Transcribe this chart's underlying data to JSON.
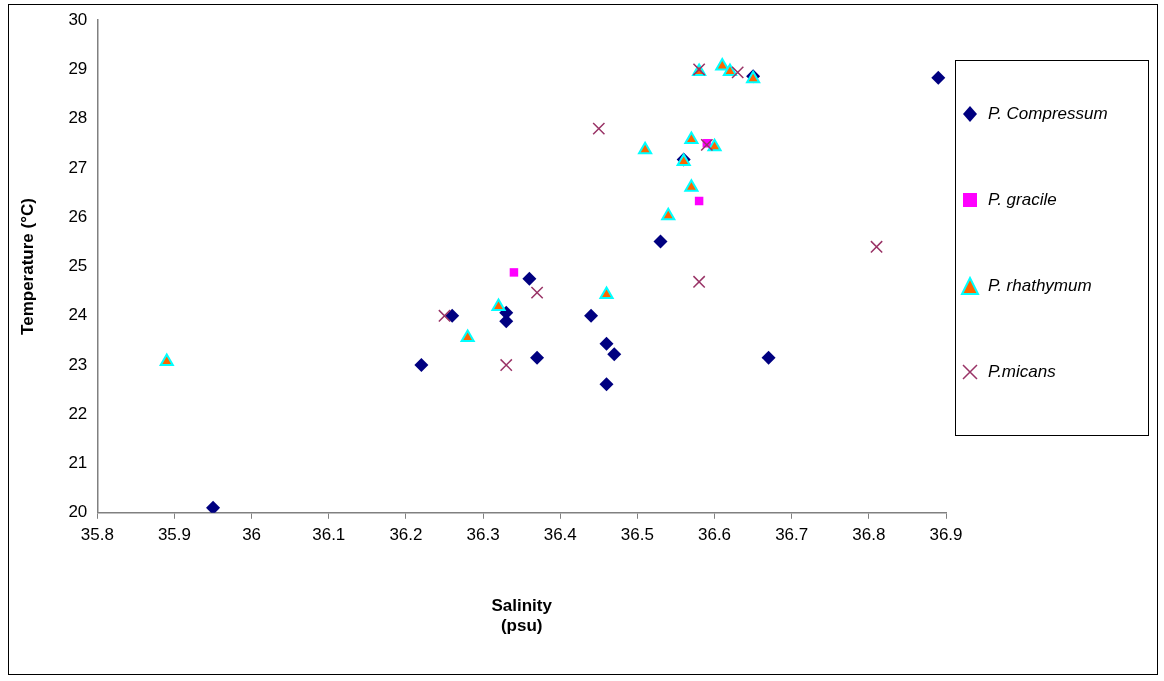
{
  "chart_data": {
    "type": "scatter",
    "xlabel": "Salinity (psu)",
    "ylabel": "Temperature (°C)",
    "xlim": [
      35.8,
      36.9
    ],
    "xticks": [
      35.8,
      35.9,
      36,
      36.1,
      36.2,
      36.3,
      36.4,
      36.5,
      36.6,
      36.7,
      36.8,
      36.9
    ],
    "ylim": [
      20,
      30
    ],
    "yticks": [
      20,
      21,
      22,
      23,
      24,
      25,
      26,
      27,
      28,
      29,
      30
    ],
    "grid": false,
    "legend": "right",
    "series": [
      {
        "name": "P. Compressum",
        "color": "#000080",
        "marker": "diamond",
        "x": [
          35.95,
          36.22,
          36.26,
          36.33,
          36.33,
          36.36,
          36.37,
          36.44,
          36.46,
          36.47,
          36.46,
          36.53,
          36.56,
          36.65,
          36.67,
          36.89
        ],
        "values": [
          20.1,
          23.0,
          24.0,
          24.06,
          23.89,
          24.75,
          23.15,
          24.0,
          23.43,
          23.22,
          22.61,
          25.51,
          27.17,
          28.86,
          23.15,
          28.83
        ]
      },
      {
        "name": "P. gracile",
        "color": "#ff00ff",
        "marker": "square",
        "x": [
          36.34,
          36.58,
          36.59
        ],
        "values": [
          24.88,
          26.33,
          27.5
        ]
      },
      {
        "name": "P. rhathymum",
        "color": "#ff6600",
        "marker": "triangle",
        "x": [
          35.89,
          36.28,
          36.32,
          36.46,
          36.51,
          36.54,
          36.56,
          36.57,
          36.57,
          36.58,
          36.6,
          36.61,
          36.62,
          36.65
        ],
        "values": [
          23.07,
          23.56,
          24.19,
          24.43,
          27.37,
          26.03,
          27.13,
          26.61,
          27.58,
          28.96,
          27.43,
          29.07,
          28.96,
          28.81
        ]
      },
      {
        "name": "P.micans",
        "color": "#993366",
        "marker": "cross",
        "x": [
          36.25,
          36.33,
          36.37,
          36.45,
          36.58,
          36.58,
          36.59,
          36.63,
          36.81
        ],
        "values": [
          24.0,
          23.0,
          24.47,
          27.8,
          24.69,
          29.0,
          27.47,
          28.94,
          25.4
        ]
      }
    ]
  }
}
